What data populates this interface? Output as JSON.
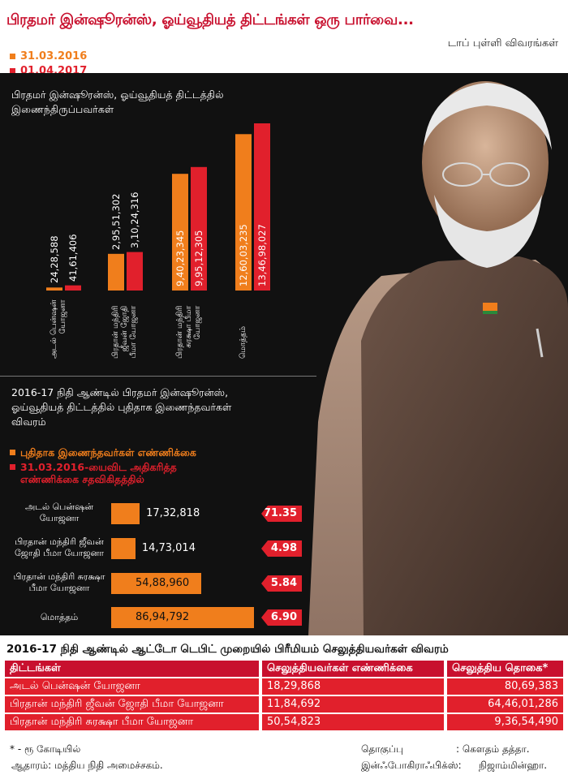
{
  "header": {
    "title": "பிரதமர் இன்ஷூரன்ஸ், ஓய்வூதியத் திட்டங்கள் ஒரு பார்வை...",
    "subtitle": "டாப் புள்ளி விவரங்கள்"
  },
  "colors": {
    "orange": "#f07e1c",
    "red": "#e1202c",
    "dark_red": "#c8102e",
    "panel": "#111111"
  },
  "chart_data": [
    {
      "type": "bar",
      "title": "பிரதமர் இன்ஷூரன்ஸ், ஓய்வூதியத் திட்டத்தில் இணைந்திருப்பவர்கள்",
      "categories": [
        "அடல் பென்ஷன் யோஜனா",
        "பிரதான் மந்திரி ஜீவன் ஜோதி பீமா யோஜனா",
        "பிரதான் மந்திரி சுரக்ஷா பீமா யோஜனா",
        "மொத்தம்"
      ],
      "series": [
        {
          "name": "31.03.2016",
          "color": "#f07e1c",
          "values": [
            2428588,
            29551302,
            94023345,
            126003235
          ],
          "labels": [
            "24,28,588",
            "2,95,51,302",
            "9,40,23,345",
            "12,60,03,235"
          ]
        },
        {
          "name": "01.04.2017",
          "color": "#e1202c",
          "values": [
            4161406,
            31024316,
            99512305,
            134698027
          ],
          "labels": [
            "41,61,406",
            "3,10,24,316",
            "9,95,12,305",
            "13,46,98,027"
          ]
        }
      ]
    },
    {
      "type": "bar",
      "orientation": "horizontal",
      "title": "2016-17 நிதி ஆண்டில் பிரதமர் இன்ஷூரன்ஸ், ஓய்வூதியத் திட்டத்தில் புதிதாக இணைந்தவர்கள் விவரம்",
      "categories": [
        "அடல் பென்ஷன் யோஜனா",
        "பிரதான் மந்திரி ஜீவன் ஜோதி பீமா யோஜனா",
        "பிரதான் மந்திரி சுரக்ஷா பீமா யோஜனா",
        "மொத்தம்"
      ],
      "series": [
        {
          "name": "புதிதாக இணைந்தவர்கள் எண்ணிக்கை",
          "color": "#f07e1c",
          "values": [
            1732818,
            1473014,
            5488960,
            8694792
          ],
          "labels": [
            "17,32,818",
            "14,73,014",
            "54,88,960",
            "86,94,792"
          ]
        },
        {
          "name": "31.03.2016-யைவிட அதிகரித்த எண்ணிக்கை சதவிகிதத்தில்",
          "color": "#e1202c",
          "values": [
            71.35,
            4.98,
            5.84,
            6.9
          ],
          "labels": [
            "71.35",
            "4.98",
            "5.84",
            "6.90"
          ]
        }
      ]
    },
    {
      "type": "table",
      "title": "2016-17 நிதி ஆண்டில் ஆட்டோ டெபிட் முறையில் பிரீமியம் செலுத்தியவர்கள் விவரம்",
      "columns": [
        "திட்டங்கள்",
        "செலுத்தியவர்கள் எண்ணிக்கை",
        "செலுத்திய தொகை*"
      ],
      "rows": [
        [
          "அடல் பென்ஷன் யோஜனா",
          "18,29,868",
          "80,69,383"
        ],
        [
          "பிரதான் மந்திரி ஜீவன் ஜோதி பீமா யோஜனா",
          "11,84,692",
          "64,46,01,286"
        ],
        [
          "பிரதான் மந்திரி சுரக்ஷா பீமா யோஜனா",
          "50,54,823",
          "9,36,54,490"
        ]
      ]
    }
  ],
  "chart1_cat_lines": [
    [
      "அடல் பென்ஷன்",
      "யோஜனா"
    ],
    [
      "பிரதான் மந்திரி",
      "ஜீவன் ஜோதி",
      "பீமா யோஜனா"
    ],
    [
      "பிரதான் மந்திரி",
      "சுரக்ஷா பீமா",
      "யோஜனா"
    ],
    [
      "மொத்தம்"
    ]
  ],
  "chart2_legend": [
    "புதிதாக இணைந்தவர்கள் எண்ணிக்கை",
    "31.03.2016-யைவிட அதிகரித்த",
    "எண்ணிக்கை சதவிகிதத்தில்"
  ],
  "chart2_cat_lines": [
    [
      "அடல் பென்ஷன்",
      "யோஜனா"
    ],
    [
      "பிரதான் மந்திரி ஜீவன்",
      "ஜோதி பீமா யோஜனா"
    ],
    [
      "பிரதான் மந்திரி சுரக்ஷா",
      "பீமா யோஜனா"
    ],
    [
      "மொத்தம்"
    ]
  ],
  "chart1_title_lines": [
    "பிரதமர் இன்ஷூரன்ஸ், ஓய்வூதியத் திட்டத்தில்",
    "இணைந்திருப்பவர்கள்"
  ],
  "chart2_title_lines": [
    "2016-17 நிதி ஆண்டில் பிரதமர் இன்ஷூரன்ஸ்,",
    "ஓய்வூதியத்  திட்டத்தில் புதிதாக இணைந்தவர்கள்",
    "விவரம்"
  ],
  "footer": {
    "footnote": "* - ரூ கோடியில்",
    "source": "ஆதாரம்: மத்திய நிதி அமைச்சகம்.",
    "compiled_label": "தொகுப்பு",
    "compiled_by": ": கௌதம் தத்தா.",
    "graphics_label": "இன்ஃபோகிராஃபிக்ஸ்:",
    "graphics_by": "நிஜாம்மின்ஹா."
  }
}
